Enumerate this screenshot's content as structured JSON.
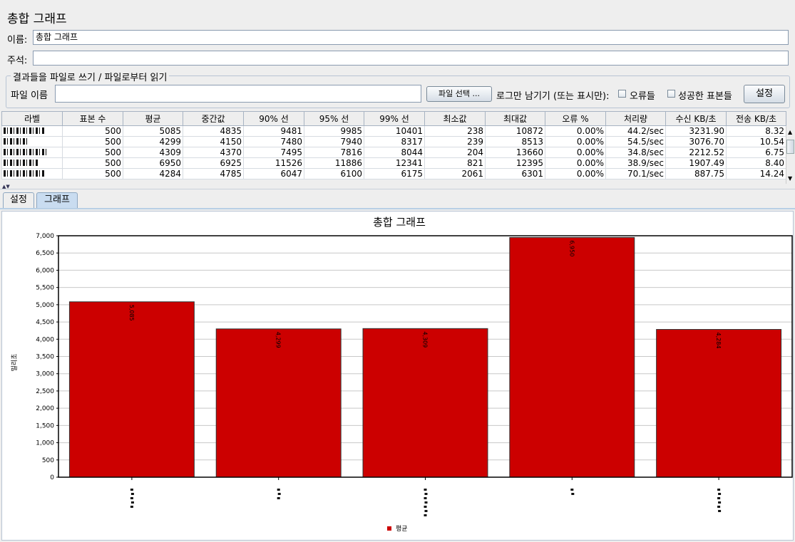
{
  "window": {
    "title": "총합 그래프"
  },
  "form": {
    "name_label": "이름:",
    "name_value": "총합 그래프",
    "comment_label": "주석:",
    "comment_value": "",
    "file_group_label": "결과들을 파일로 쓰기 / 파일로부터 읽기",
    "filename_label": "파일 이름",
    "filename_value": "",
    "browse_button": "파일 선택 ...",
    "log_only_label": "로그만 남기기 (또는 표시만):",
    "errors_label": "오류들",
    "successes_label": "성공한 표본들",
    "configure_button": "설정"
  },
  "table": {
    "headers": [
      "라벨",
      "표본 수",
      "평균",
      "중간값",
      "90% 선",
      "95% 선",
      "99% 선",
      "최소값",
      "최대값",
      "오류 %",
      "처리량",
      "수신 KB/초",
      "전송 KB/초"
    ],
    "rows": [
      [
        "",
        "500",
        "5085",
        "4835",
        "9481",
        "9985",
        "10401",
        "238",
        "10872",
        "0.00%",
        "44.2/sec",
        "3231.90",
        "8.32"
      ],
      [
        "",
        "500",
        "4299",
        "4150",
        "7480",
        "7940",
        "8317",
        "239",
        "8513",
        "0.00%",
        "54.5/sec",
        "3076.70",
        "10.54"
      ],
      [
        "",
        "500",
        "4309",
        "4370",
        "7495",
        "7816",
        "8044",
        "204",
        "13660",
        "0.00%",
        "34.8/sec",
        "2212.52",
        "6.75"
      ],
      [
        "",
        "500",
        "6950",
        "6925",
        "11526",
        "11886",
        "12341",
        "821",
        "12395",
        "0.00%",
        "38.9/sec",
        "1907.49",
        "8.40"
      ],
      [
        "",
        "500",
        "4284",
        "4785",
        "6047",
        "6100",
        "6175",
        "2061",
        "6301",
        "0.00%",
        "70.1/sec",
        "887.75",
        "14.24"
      ]
    ]
  },
  "tabs": {
    "settings": "설정",
    "graph": "그래프",
    "active": "graph"
  },
  "colors": {
    "bar": "#cc0000",
    "accent_tab": "#c9dcf0"
  },
  "chart_data": {
    "type": "bar",
    "title": "총합 그래프",
    "ylabel": "밀리초",
    "ylim": [
      0,
      7000
    ],
    "yticks": [
      "0",
      "500",
      "1,000",
      "1,500",
      "2,000",
      "2,500",
      "3,000",
      "3,500",
      "4,000",
      "4,500",
      "5,000",
      "5,500",
      "6,000",
      "6,500",
      "7,000"
    ],
    "grid": true,
    "legend_position": "bottom",
    "series": [
      {
        "name": "평균",
        "values": [
          5085,
          4299,
          4309,
          6950,
          4284
        ],
        "labels": [
          "5,085",
          "4,299",
          "4,309",
          "6,950",
          "4,284"
        ]
      }
    ]
  }
}
